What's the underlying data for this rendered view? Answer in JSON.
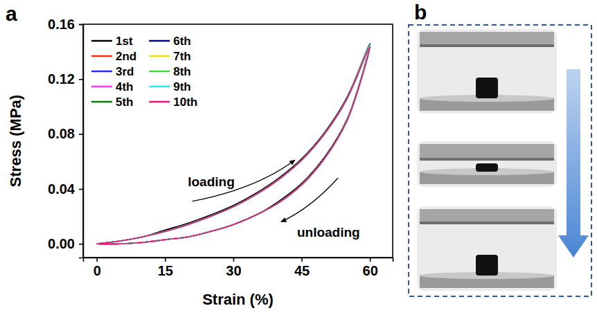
{
  "chart_data": {
    "type": "line",
    "panel_label": "a",
    "x_label": "Strain (%)",
    "y_label": "Stress (MPa)",
    "annotations": [
      "loading",
      "unloading"
    ],
    "x": [
      0,
      5,
      10,
      15,
      20,
      25,
      30,
      35,
      40,
      45,
      50,
      55,
      60,
      55,
      50,
      45,
      40,
      35,
      30,
      25,
      20,
      15,
      10,
      5,
      0
    ],
    "series": [
      {
        "name": "1st",
        "color": "#000000",
        "values": [
          0,
          0.002,
          0.005,
          0.01,
          0.015,
          0.021,
          0.028,
          0.037,
          0.048,
          0.062,
          0.081,
          0.107,
          0.146,
          0.091,
          0.063,
          0.044,
          0.031,
          0.021,
          0.014,
          0.009,
          0.005,
          0.003,
          0.001,
          0,
          0
        ]
      },
      {
        "name": "2nd",
        "color": "#ff2a1a",
        "values": [
          0,
          0.002,
          0.005,
          0.009,
          0.014,
          0.02,
          0.027,
          0.036,
          0.047,
          0.061,
          0.08,
          0.106,
          0.145,
          0.09,
          0.062,
          0.043,
          0.03,
          0.021,
          0.014,
          0.009,
          0.005,
          0.003,
          0.001,
          0,
          0
        ]
      },
      {
        "name": "3rd",
        "color": "#1f2bff",
        "values": [
          0,
          0.002,
          0.005,
          0.009,
          0.014,
          0.02,
          0.027,
          0.036,
          0.047,
          0.061,
          0.08,
          0.106,
          0.145,
          0.09,
          0.062,
          0.043,
          0.03,
          0.021,
          0.014,
          0.009,
          0.005,
          0.003,
          0.001,
          0,
          0
        ]
      },
      {
        "name": "4th",
        "color": "#ff33ff",
        "values": [
          0,
          0.002,
          0.005,
          0.009,
          0.014,
          0.02,
          0.027,
          0.036,
          0.047,
          0.061,
          0.08,
          0.106,
          0.145,
          0.09,
          0.062,
          0.043,
          0.03,
          0.021,
          0.014,
          0.009,
          0.005,
          0.003,
          0.001,
          0,
          0
        ]
      },
      {
        "name": "5th",
        "color": "#008000",
        "values": [
          0,
          0.002,
          0.005,
          0.009,
          0.014,
          0.02,
          0.027,
          0.036,
          0.047,
          0.061,
          0.08,
          0.106,
          0.145,
          0.09,
          0.062,
          0.043,
          0.03,
          0.021,
          0.014,
          0.009,
          0.005,
          0.003,
          0.001,
          0,
          0
        ]
      },
      {
        "name": "6th",
        "color": "#000080",
        "values": [
          0,
          0.002,
          0.005,
          0.009,
          0.014,
          0.02,
          0.027,
          0.036,
          0.047,
          0.061,
          0.08,
          0.106,
          0.145,
          0.09,
          0.062,
          0.043,
          0.03,
          0.021,
          0.014,
          0.009,
          0.005,
          0.003,
          0.001,
          0,
          0
        ]
      },
      {
        "name": "7th",
        "color": "#e6e600",
        "values": [
          0,
          0.002,
          0.005,
          0.009,
          0.014,
          0.02,
          0.027,
          0.036,
          0.047,
          0.061,
          0.08,
          0.106,
          0.145,
          0.09,
          0.062,
          0.043,
          0.03,
          0.021,
          0.014,
          0.009,
          0.005,
          0.003,
          0.001,
          0,
          0
        ]
      },
      {
        "name": "8th",
        "color": "#33dd33",
        "values": [
          0,
          0.002,
          0.005,
          0.009,
          0.014,
          0.02,
          0.027,
          0.036,
          0.047,
          0.061,
          0.08,
          0.106,
          0.145,
          0.09,
          0.062,
          0.043,
          0.03,
          0.021,
          0.014,
          0.009,
          0.005,
          0.003,
          0.001,
          0,
          0
        ]
      },
      {
        "name": "9th",
        "color": "#33e6e6",
        "values": [
          0,
          0.002,
          0.005,
          0.009,
          0.014,
          0.02,
          0.027,
          0.036,
          0.047,
          0.061,
          0.08,
          0.106,
          0.145,
          0.09,
          0.062,
          0.043,
          0.03,
          0.021,
          0.014,
          0.009,
          0.005,
          0.003,
          0.001,
          0,
          0
        ]
      },
      {
        "name": "10th",
        "color": "#e8177f",
        "values": [
          0,
          0.002,
          0.005,
          0.009,
          0.014,
          0.02,
          0.027,
          0.036,
          0.047,
          0.061,
          0.08,
          0.106,
          0.144,
          0.09,
          0.062,
          0.043,
          0.03,
          0.021,
          0.014,
          0.009,
          0.005,
          0.003,
          0.001,
          0,
          0
        ]
      }
    ],
    "xlim": [
      -3,
      65
    ],
    "xticks": [
      0,
      15,
      30,
      45,
      60
    ],
    "ylim": [
      -0.01,
      0.16
    ],
    "yticks": [
      {
        "value": 0,
        "label": "0.00"
      },
      {
        "value": 0.04,
        "label": "0.04"
      },
      {
        "value": 0.08,
        "label": "0.08"
      },
      {
        "value": 0.12,
        "label": "0.12"
      },
      {
        "value": 0.16,
        "label": "0.16"
      }
    ],
    "grid": false,
    "legend": "upper left"
  },
  "panel_b": {
    "label": "b"
  }
}
